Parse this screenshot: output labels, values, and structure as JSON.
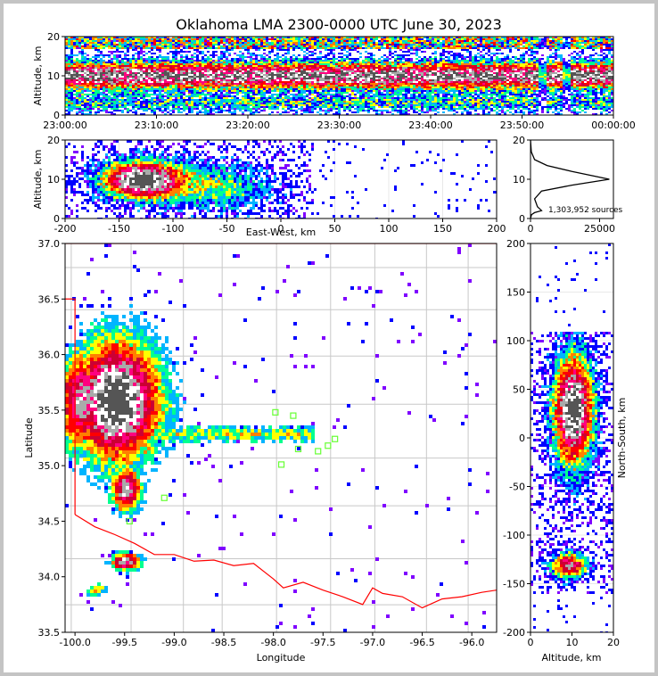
{
  "title": "Oklahoma LMA 2300-0000 UTC June 30, 2023",
  "colors": {
    "density": [
      "#7f00ff",
      "#0000ff",
      "#00b4ff",
      "#00ff90",
      "#ffff00",
      "#ff7f00",
      "#ff0000",
      "#cc0033",
      "#ff0080",
      "#aaaaaa",
      "#ffffff",
      "#555555"
    ],
    "state_border": "#ff0000",
    "county_lines": "#c8c8c8",
    "stations": "#66ff33"
  },
  "chart_data": [
    {
      "name": "time-height",
      "type": "heatmap",
      "ylabel": "Altitude, km",
      "ylim": [
        0,
        20
      ],
      "yticks": [
        "0",
        "10",
        "20"
      ],
      "xticks": [
        "23:00:00",
        "23:10:00",
        "23:20:00",
        "23:30:00",
        "23:40:00",
        "23:50:00",
        "00:00:00"
      ]
    },
    {
      "name": "ew-height",
      "type": "heatmap",
      "xlabel": "East-West, km",
      "ylabel": "Altitude, km",
      "xlim": [
        -200,
        200
      ],
      "ylim": [
        0,
        20
      ],
      "xticks": [
        "-200",
        "-150",
        "-100",
        "-50",
        "0",
        "50",
        "100",
        "150",
        "200"
      ],
      "yticks": [
        "0",
        "10",
        "20"
      ]
    },
    {
      "name": "altitude-histogram",
      "type": "line",
      "xlim": [
        0,
        30000
      ],
      "ylim": [
        0,
        20
      ],
      "xticks": [
        "0",
        "25000"
      ],
      "yticks": [
        "0",
        "10",
        "20"
      ],
      "annotation": "1,303,952 sources",
      "x": [
        0,
        300,
        1500,
        6000,
        15000,
        28500,
        15000,
        4000,
        1500,
        2500,
        4000,
        1500,
        400,
        0
      ],
      "y": [
        20,
        17,
        15,
        13.5,
        12,
        10,
        8.5,
        7,
        5,
        3,
        2,
        1.5,
        1,
        0
      ]
    },
    {
      "name": "plan-view",
      "type": "heatmap",
      "xlabel": "Longitude",
      "ylabel": "Latitude",
      "xlim": [
        -100.1,
        -95.75
      ],
      "ylim": [
        33.5,
        37.0
      ],
      "xticks": [
        "-100.0",
        "-99.5",
        "-99.0",
        "-98.5",
        "-98.0",
        "-97.5",
        "-97.0",
        "-96.5",
        "-96.0"
      ],
      "yticks": [
        "33.5",
        "34.0",
        "34.5",
        "35.0",
        "35.5",
        "36.0",
        "36.5",
        "37.0"
      ],
      "stations": [
        {
          "lon": -97.98,
          "lat": 35.48
        },
        {
          "lon": -97.8,
          "lat": 35.45
        },
        {
          "lon": -97.92,
          "lat": 35.01
        },
        {
          "lon": -97.75,
          "lat": 35.15
        },
        {
          "lon": -97.55,
          "lat": 35.13
        },
        {
          "lon": -97.45,
          "lat": 35.18
        },
        {
          "lon": -97.38,
          "lat": 35.24
        },
        {
          "lon": -99.1,
          "lat": 34.71
        },
        {
          "lon": -99.45,
          "lat": 34.5
        }
      ]
    },
    {
      "name": "ns-height",
      "type": "heatmap",
      "xlabel": "Altitude, km",
      "ylabel": "North-South, km",
      "xlim": [
        0,
        20
      ],
      "ylim": [
        -200,
        200
      ],
      "xticks": [
        "0",
        "10",
        "20"
      ],
      "yticks": [
        "-200",
        "-150",
        "-100",
        "-50",
        "0",
        "50",
        "100",
        "150",
        "200"
      ]
    }
  ]
}
